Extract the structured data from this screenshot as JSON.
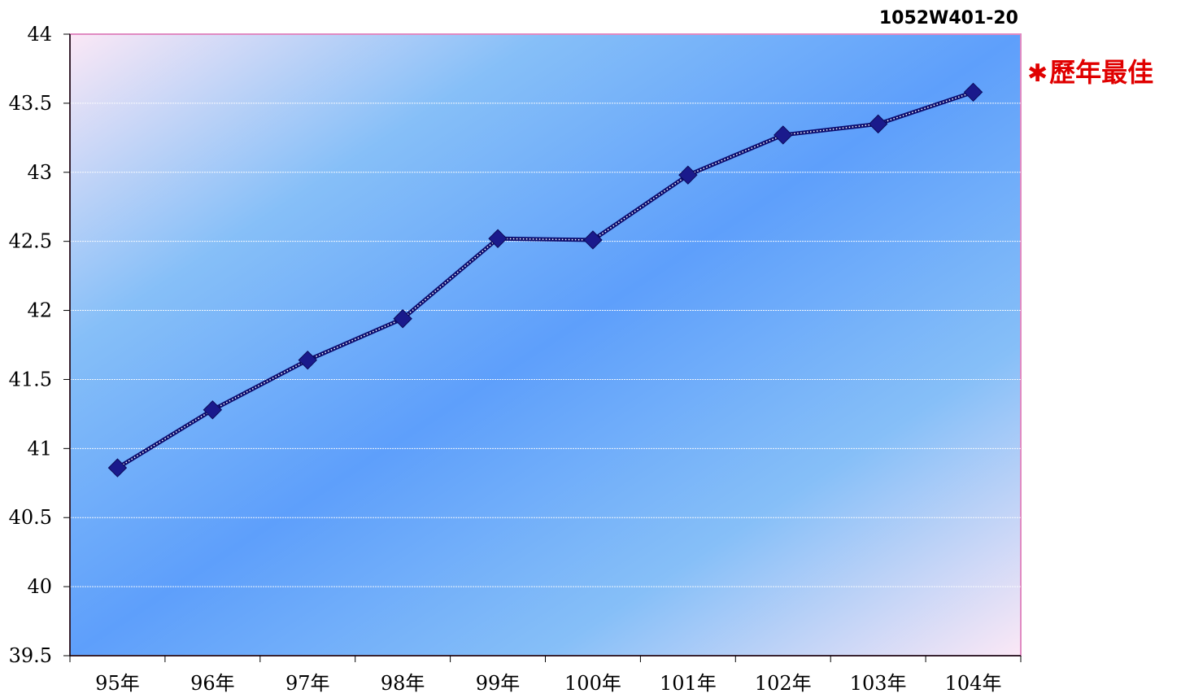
{
  "chart_data": {
    "type": "line",
    "categories": [
      "95年",
      "96年",
      "97年",
      "98年",
      "99年",
      "100年",
      "101年",
      "102年",
      "103年",
      "104年"
    ],
    "series": [
      {
        "values": [
          40.86,
          41.28,
          41.64,
          41.94,
          42.52,
          42.51,
          42.98,
          43.27,
          43.35,
          43.58
        ]
      }
    ],
    "ylim": [
      39.5,
      44
    ],
    "y_ticks": [
      "39.5",
      "40",
      "40.5",
      "41",
      "41.5",
      "42",
      "42.5",
      "43",
      "43.5",
      "44"
    ],
    "grid": true,
    "line_color": "#0d0d6e",
    "marker_color": "#1a1a8c",
    "marker": "diamond",
    "chart_id": "1052W401-20",
    "annotation": {
      "symbol": "✱",
      "text": "歷年最佳",
      "color": "#e00000"
    }
  }
}
